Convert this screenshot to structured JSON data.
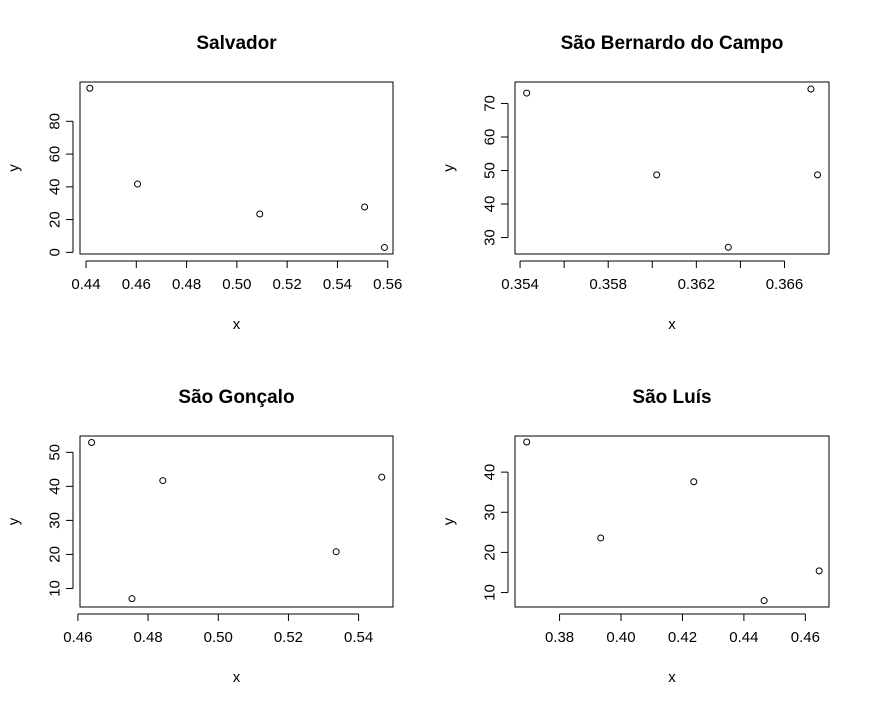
{
  "chart_data": [
    {
      "type": "scatter",
      "title": "Salvador",
      "xlabel": "x",
      "ylabel": "y",
      "xlim": [
        0.4376,
        0.5621
      ],
      "ylim": [
        -1.0,
        104.0
      ],
      "xticks": [
        {
          "value": 0.44,
          "label": "0.44"
        },
        {
          "value": 0.46,
          "label": "0.46"
        },
        {
          "value": 0.48,
          "label": "0.48"
        },
        {
          "value": 0.5,
          "label": "0.50"
        },
        {
          "value": 0.52,
          "label": "0.52"
        },
        {
          "value": 0.54,
          "label": "0.54"
        },
        {
          "value": 0.56,
          "label": "0.56"
        }
      ],
      "yticks": [
        {
          "value": 0,
          "label": "0"
        },
        {
          "value": 20,
          "label": "20"
        },
        {
          "value": 40,
          "label": "40"
        },
        {
          "value": 60,
          "label": "60"
        },
        {
          "value": 80,
          "label": "80"
        }
      ],
      "points": [
        {
          "x": 0.4415,
          "y": 100.2
        },
        {
          "x": 0.4605,
          "y": 41.7
        },
        {
          "x": 0.5091,
          "y": 23.4
        },
        {
          "x": 0.5508,
          "y": 27.7
        },
        {
          "x": 0.5587,
          "y": 3.0
        }
      ],
      "grid": false
    },
    {
      "type": "scatter",
      "title": "São Bernardo do Campo",
      "xlabel": "x",
      "ylabel": "y",
      "xlim": [
        0.35377,
        0.36802
      ],
      "ylim": [
        25.1,
        76.4
      ],
      "xticks": [
        {
          "value": 0.354,
          "label": "0.354"
        },
        {
          "value": 0.356,
          "label": ""
        },
        {
          "value": 0.358,
          "label": "0.358"
        },
        {
          "value": 0.36,
          "label": ""
        },
        {
          "value": 0.362,
          "label": "0.362"
        },
        {
          "value": 0.364,
          "label": ""
        },
        {
          "value": 0.366,
          "label": "0.366"
        }
      ],
      "yticks": [
        {
          "value": 30,
          "label": "30"
        },
        {
          "value": 40,
          "label": "40"
        },
        {
          "value": 50,
          "label": "50"
        },
        {
          "value": 60,
          "label": "60"
        },
        {
          "value": 70,
          "label": "70"
        }
      ],
      "points": [
        {
          "x": 0.3543,
          "y": 73.1
        },
        {
          "x": 0.3602,
          "y": 48.7
        },
        {
          "x": 0.36345,
          "y": 27.1
        },
        {
          "x": 0.3672,
          "y": 74.3
        },
        {
          "x": 0.3675,
          "y": 48.7
        }
      ],
      "grid": false
    },
    {
      "type": "scatter",
      "title": "São Gonçalo",
      "xlabel": "x",
      "ylabel": "y",
      "xlim": [
        0.4606,
        0.5498
      ],
      "ylim": [
        4.55,
        54.8
      ],
      "xticks": [
        {
          "value": 0.46,
          "label": "0.46"
        },
        {
          "value": 0.48,
          "label": "0.48"
        },
        {
          "value": 0.5,
          "label": "0.50"
        },
        {
          "value": 0.52,
          "label": "0.52"
        },
        {
          "value": 0.54,
          "label": "0.54"
        }
      ],
      "yticks": [
        {
          "value": 10,
          "label": "10"
        },
        {
          "value": 20,
          "label": "20"
        },
        {
          "value": 30,
          "label": "30"
        },
        {
          "value": 40,
          "label": "40"
        },
        {
          "value": 50,
          "label": "50"
        }
      ],
      "points": [
        {
          "x": 0.4639,
          "y": 52.9
        },
        {
          "x": 0.4754,
          "y": 7.0
        },
        {
          "x": 0.4842,
          "y": 41.7
        },
        {
          "x": 0.5336,
          "y": 20.8
        },
        {
          "x": 0.5466,
          "y": 42.7
        }
      ],
      "grid": false
    },
    {
      "type": "scatter",
      "title": "São Luís",
      "xlabel": "x",
      "ylabel": "y",
      "xlim": [
        0.3655,
        0.4677
      ],
      "ylim": [
        6.4,
        49.0
      ],
      "xticks": [
        {
          "value": 0.38,
          "label": "0.38"
        },
        {
          "value": 0.4,
          "label": "0.40"
        },
        {
          "value": 0.42,
          "label": "0.42"
        },
        {
          "value": 0.44,
          "label": "0.44"
        },
        {
          "value": 0.46,
          "label": "0.46"
        }
      ],
      "yticks": [
        {
          "value": 10,
          "label": "10"
        },
        {
          "value": 20,
          "label": "20"
        },
        {
          "value": 30,
          "label": "30"
        },
        {
          "value": 40,
          "label": "40"
        }
      ],
      "points": [
        {
          "x": 0.3693,
          "y": 47.5
        },
        {
          "x": 0.3934,
          "y": 23.6
        },
        {
          "x": 0.4237,
          "y": 37.6
        },
        {
          "x": 0.4466,
          "y": 8.0
        },
        {
          "x": 0.4645,
          "y": 15.4
        }
      ],
      "grid": false
    }
  ]
}
